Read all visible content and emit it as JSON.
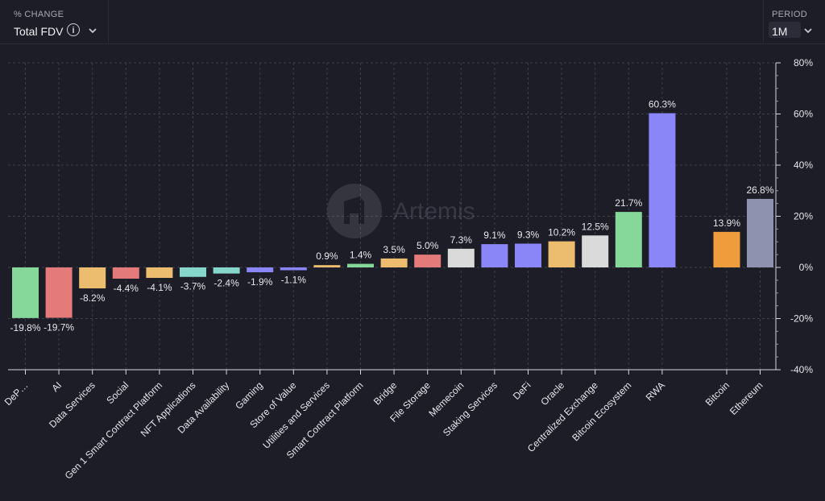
{
  "metric_selector": {
    "label": "% CHANGE",
    "value": "Total FDV"
  },
  "period_selector": {
    "label": "PERIOD",
    "value": "1M"
  },
  "watermark": "Artemis",
  "chart_data": {
    "type": "bar",
    "categories": [
      "DeP…",
      "AI",
      "Data Services",
      "Social",
      "Gen 1 Smart Contract Platform",
      "NFT Applications",
      "Data Availability",
      "Gaming",
      "Store of Value",
      "Utilities and Services",
      "Smart Contract Platform",
      "Bridge",
      "File Storage",
      "Memecoin",
      "Staking Services",
      "DeFi",
      "Oracle",
      "Centralized Exchange",
      "Bitcoin Ecosystem",
      "RWA",
      "Bitcoin",
      "Ethereum"
    ],
    "values": [
      -19.8,
      -19.7,
      -8.2,
      -4.4,
      -4.1,
      -3.7,
      -2.4,
      -1.9,
      -1.1,
      0.9,
      1.4,
      3.5,
      5.0,
      7.3,
      9.1,
      9.3,
      10.2,
      12.5,
      21.7,
      60.3,
      13.9,
      26.8
    ],
    "data_labels": [
      "-19.8%",
      "-19.7%",
      "-8.2%",
      "-4.4%",
      "-4.1%",
      "-3.7%",
      "-2.4%",
      "-1.9%",
      "-1.1%",
      "0.9%",
      "1.4%",
      "3.5%",
      "5.0%",
      "7.3%",
      "9.1%",
      "9.3%",
      "10.2%",
      "12.5%",
      "21.7%",
      "60.3%",
      "13.9%",
      "26.8%"
    ],
    "colors": [
      "#86d89a",
      "#e47a7a",
      "#ecbd6e",
      "#e47a7a",
      "#ecbd6e",
      "#86d6cc",
      "#86d6cc",
      "#8a86f8",
      "#8a86f8",
      "#ecbd6e",
      "#86d89a",
      "#ecbd6e",
      "#e47a7a",
      "#dadada",
      "#8a86f8",
      "#8a86f8",
      "#ecbd6e",
      "#dadada",
      "#86d89a",
      "#8a86f8",
      "#ee9c3c",
      "#8e92ae"
    ],
    "ylim": [
      -40,
      80
    ],
    "yticks": [
      80,
      60,
      40,
      20,
      0,
      -20,
      -40
    ],
    "ytick_labels": [
      "80%",
      "60%",
      "40%",
      "20%",
      "0%",
      "-20%",
      "-40%"
    ],
    "y_axis_position": "right",
    "grid": true
  }
}
